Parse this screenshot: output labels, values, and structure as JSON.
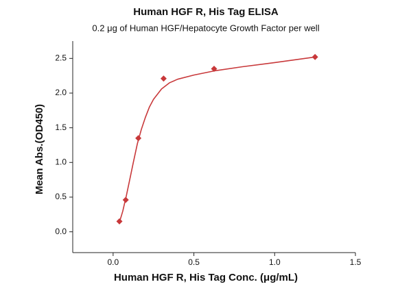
{
  "chart_data": {
    "type": "scatter",
    "title": "Human HGF R, His Tag ELISA",
    "subtitle": "0.2 μg of Human HGF/Hepatocyte Growth Factor per well",
    "x_label": "Human HGF R, His Tag Conc. (μg/mL)",
    "y_label": "Mean Abs.(OD450)",
    "xlim": [
      -0.25,
      1.5
    ],
    "ylim": [
      -0.3,
      2.75
    ],
    "xticks": [
      {
        "value": 0,
        "label": "0.0"
      },
      0.5,
      {
        "value": 1,
        "label": "1.0"
      },
      1.5
    ],
    "yticks": [
      {
        "value": 0,
        "label": "0.0"
      },
      0.5,
      {
        "value": 1,
        "label": "1.0"
      },
      1.5,
      {
        "value": 2,
        "label": "2.0"
      },
      2.5
    ],
    "series": [
      {
        "mode": "markers",
        "marker": "diamond",
        "color": "#c8383a",
        "x": [
          0.039,
          0.078,
          0.156,
          0.3125,
          0.625,
          1.25
        ],
        "values": [
          0.15,
          0.46,
          1.35,
          2.21,
          2.35,
          2.52
        ]
      },
      {
        "mode": "line",
        "color": "#c8383a",
        "x": [
          0.039,
          0.05,
          0.06,
          0.07,
          0.08,
          0.1,
          0.125,
          0.15,
          0.175,
          0.2,
          0.225,
          0.25,
          0.3,
          0.35,
          0.4,
          0.5,
          0.625,
          0.8,
          1.0,
          1.25
        ],
        "values": [
          0.14,
          0.22,
          0.3,
          0.4,
          0.5,
          0.72,
          1.0,
          1.27,
          1.48,
          1.65,
          1.8,
          1.91,
          2.06,
          2.15,
          2.2,
          2.26,
          2.32,
          2.38,
          2.44,
          2.52
        ]
      }
    ]
  }
}
